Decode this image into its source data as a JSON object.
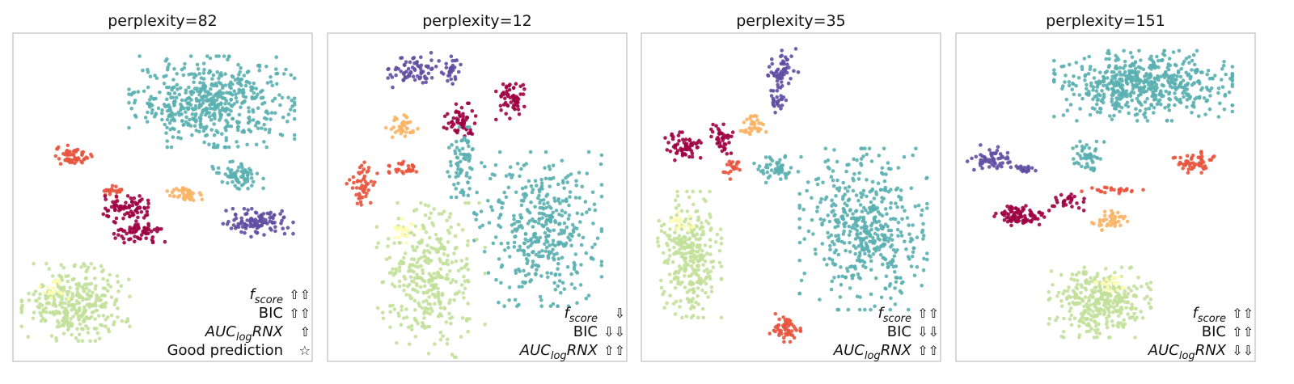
{
  "chart_data": [
    {
      "type": "scatter",
      "title": "perplexity=82",
      "annotations": [
        {
          "label": "f",
          "subscript": "score",
          "italic": true,
          "arrows": "⇧⇧"
        },
        {
          "label": "BIC",
          "subscript": "",
          "italic": false,
          "arrows": "⇧⇧"
        },
        {
          "label": "AUC",
          "subscript": "log",
          "suffix": "RNX",
          "italic": true,
          "arrows": "⇧"
        },
        {
          "label": "Good prediction",
          "subscript": "",
          "italic": false,
          "arrows": "☆"
        }
      ],
      "clusters": [
        {
          "color": "#5aafb0",
          "cx": 0.67,
          "cy": 0.8,
          "rx": 0.26,
          "ry": 0.13,
          "n": 520
        },
        {
          "color": "#5aafb0",
          "cx": 0.76,
          "cy": 0.57,
          "rx": 0.08,
          "ry": 0.04,
          "n": 70
        },
        {
          "color": "#e8543d",
          "cx": 0.19,
          "cy": 0.63,
          "rx": 0.06,
          "ry": 0.03,
          "n": 60
        },
        {
          "color": "#e8543d",
          "cx": 0.33,
          "cy": 0.52,
          "rx": 0.05,
          "ry": 0.02,
          "n": 20
        },
        {
          "color": "#fbb364",
          "cx": 0.58,
          "cy": 0.51,
          "rx": 0.06,
          "ry": 0.025,
          "n": 40
        },
        {
          "color": "#9e0142",
          "cx": 0.38,
          "cy": 0.46,
          "rx": 0.09,
          "ry": 0.04,
          "n": 80
        },
        {
          "color": "#9e0142",
          "cx": 0.42,
          "cy": 0.39,
          "rx": 0.08,
          "ry": 0.03,
          "n": 70
        },
        {
          "color": "#5e4fa2",
          "cx": 0.83,
          "cy": 0.42,
          "rx": 0.11,
          "ry": 0.04,
          "n": 110
        },
        {
          "color": "#c2e09a",
          "cx": 0.2,
          "cy": 0.17,
          "rx": 0.17,
          "ry": 0.11,
          "n": 330
        },
        {
          "color": "#fefcb0",
          "cx": 0.12,
          "cy": 0.21,
          "rx": 0.05,
          "ry": 0.03,
          "n": 20
        }
      ]
    },
    {
      "type": "scatter",
      "title": "perplexity=12",
      "annotations": [
        {
          "label": "f",
          "subscript": "score",
          "italic": true,
          "arrows": "⇩"
        },
        {
          "label": "BIC",
          "subscript": "",
          "italic": false,
          "arrows": "⇩⇩"
        },
        {
          "label": "AUC",
          "subscript": "log",
          "suffix": "RNX",
          "italic": true,
          "arrows": "⇧⇧"
        }
      ],
      "clusters": [
        {
          "color": "#5e4fa2",
          "cx": 0.28,
          "cy": 0.9,
          "rx": 0.08,
          "ry": 0.05,
          "n": 70
        },
        {
          "color": "#5e4fa2",
          "cx": 0.41,
          "cy": 0.9,
          "rx": 0.03,
          "ry": 0.04,
          "n": 30
        },
        {
          "color": "#9e0142",
          "cx": 0.62,
          "cy": 0.81,
          "rx": 0.05,
          "ry": 0.06,
          "n": 60
        },
        {
          "color": "#9e0142",
          "cx": 0.44,
          "cy": 0.74,
          "rx": 0.05,
          "ry": 0.05,
          "n": 60
        },
        {
          "color": "#fbb364",
          "cx": 0.24,
          "cy": 0.72,
          "rx": 0.05,
          "ry": 0.04,
          "n": 40
        },
        {
          "color": "#e8543d",
          "cx": 0.1,
          "cy": 0.54,
          "rx": 0.05,
          "ry": 0.07,
          "n": 50
        },
        {
          "color": "#e8543d",
          "cx": 0.25,
          "cy": 0.59,
          "rx": 0.05,
          "ry": 0.02,
          "n": 30
        },
        {
          "color": "#5aafb0",
          "cx": 0.45,
          "cy": 0.61,
          "rx": 0.05,
          "ry": 0.1,
          "n": 70
        },
        {
          "color": "#5aafb0",
          "cx": 0.71,
          "cy": 0.4,
          "rx": 0.2,
          "ry": 0.22,
          "n": 400
        },
        {
          "color": "#c2e09a",
          "cx": 0.34,
          "cy": 0.24,
          "rx": 0.17,
          "ry": 0.22,
          "n": 340
        },
        {
          "color": "#fefcb0",
          "cx": 0.26,
          "cy": 0.4,
          "rx": 0.04,
          "ry": 0.04,
          "n": 20
        }
      ]
    },
    {
      "type": "scatter",
      "title": "perplexity=35",
      "annotations": [
        {
          "label": "f",
          "subscript": "score",
          "italic": true,
          "arrows": "⇧⇧"
        },
        {
          "label": "BIC",
          "subscript": "",
          "italic": false,
          "arrows": "⇩⇩"
        },
        {
          "label": "AUC",
          "subscript": "log",
          "suffix": "RNX",
          "italic": true,
          "arrows": "⇧⇧"
        }
      ],
      "clusters": [
        {
          "color": "#5e4fa2",
          "cx": 0.47,
          "cy": 0.9,
          "rx": 0.05,
          "ry": 0.06,
          "n": 60
        },
        {
          "color": "#5e4fa2",
          "cx": 0.45,
          "cy": 0.8,
          "rx": 0.03,
          "ry": 0.04,
          "n": 25
        },
        {
          "color": "#fbb364",
          "cx": 0.37,
          "cy": 0.72,
          "rx": 0.04,
          "ry": 0.04,
          "n": 35
        },
        {
          "color": "#9e0142",
          "cx": 0.13,
          "cy": 0.66,
          "rx": 0.06,
          "ry": 0.04,
          "n": 60
        },
        {
          "color": "#9e0142",
          "cx": 0.26,
          "cy": 0.68,
          "rx": 0.04,
          "ry": 0.05,
          "n": 40
        },
        {
          "color": "#e8543d",
          "cx": 0.3,
          "cy": 0.59,
          "rx": 0.03,
          "ry": 0.03,
          "n": 20
        },
        {
          "color": "#5aafb0",
          "cx": 0.45,
          "cy": 0.59,
          "rx": 0.07,
          "ry": 0.04,
          "n": 50
        },
        {
          "color": "#5aafb0",
          "cx": 0.75,
          "cy": 0.4,
          "rx": 0.2,
          "ry": 0.23,
          "n": 480
        },
        {
          "color": "#c2e09a",
          "cx": 0.15,
          "cy": 0.32,
          "rx": 0.1,
          "ry": 0.18,
          "n": 300
        },
        {
          "color": "#fefcb0",
          "cx": 0.12,
          "cy": 0.42,
          "rx": 0.04,
          "ry": 0.03,
          "n": 20
        },
        {
          "color": "#e8543d",
          "cx": 0.48,
          "cy": 0.09,
          "rx": 0.05,
          "ry": 0.04,
          "n": 55
        }
      ]
    },
    {
      "type": "scatter",
      "title": "perplexity=151",
      "annotations": [
        {
          "label": "f",
          "subscript": "score",
          "italic": true,
          "arrows": "⇧⇧"
        },
        {
          "label": "BIC",
          "subscript": "",
          "italic": false,
          "arrows": "⇧⇧"
        },
        {
          "label": "AUC",
          "subscript": "log",
          "suffix": "RNX",
          "italic": true,
          "arrows": "⇩⇩"
        }
      ],
      "clusters": [
        {
          "color": "#5aafb0",
          "cx": 0.63,
          "cy": 0.85,
          "rx": 0.28,
          "ry": 0.1,
          "n": 550
        },
        {
          "color": "#5aafb0",
          "cx": 0.44,
          "cy": 0.62,
          "rx": 0.05,
          "ry": 0.05,
          "n": 50
        },
        {
          "color": "#5e4fa2",
          "cx": 0.1,
          "cy": 0.62,
          "rx": 0.07,
          "ry": 0.04,
          "n": 55
        },
        {
          "color": "#5e4fa2",
          "cx": 0.21,
          "cy": 0.59,
          "rx": 0.05,
          "ry": 0.015,
          "n": 20
        },
        {
          "color": "#e8543d",
          "cx": 0.8,
          "cy": 0.61,
          "rx": 0.07,
          "ry": 0.03,
          "n": 55
        },
        {
          "color": "#e8543d",
          "cx": 0.52,
          "cy": 0.52,
          "rx": 0.1,
          "ry": 0.01,
          "n": 25
        },
        {
          "color": "#9e0142",
          "cx": 0.21,
          "cy": 0.44,
          "rx": 0.09,
          "ry": 0.03,
          "n": 90
        },
        {
          "color": "#9e0142",
          "cx": 0.36,
          "cy": 0.49,
          "rx": 0.06,
          "ry": 0.03,
          "n": 30
        },
        {
          "color": "#fbb364",
          "cx": 0.51,
          "cy": 0.43,
          "rx": 0.06,
          "ry": 0.03,
          "n": 40
        },
        {
          "color": "#c2e09a",
          "cx": 0.48,
          "cy": 0.17,
          "rx": 0.16,
          "ry": 0.1,
          "n": 340
        },
        {
          "color": "#fefcb0",
          "cx": 0.52,
          "cy": 0.22,
          "rx": 0.05,
          "ry": 0.03,
          "n": 20
        }
      ]
    }
  ]
}
